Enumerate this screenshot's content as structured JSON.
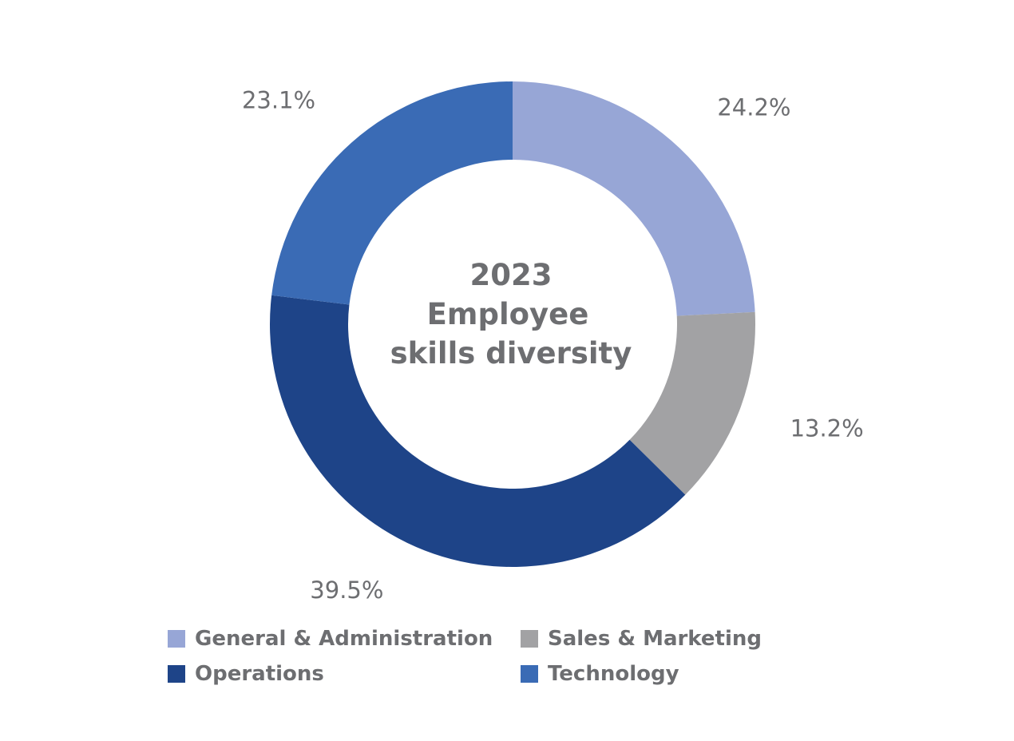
{
  "chart_data": {
    "type": "pie",
    "variant": "donut",
    "center_title": [
      "2023",
      "Employee",
      "skills diversity"
    ],
    "categories": [
      "General & Administration",
      "Sales & Marketing",
      "Operations",
      "Technology"
    ],
    "values": [
      24.2,
      13.2,
      39.5,
      23.1
    ],
    "labels": [
      "24.2%",
      "13.2%",
      "39.5%",
      "23.1%"
    ],
    "colors": [
      "#97a6d6",
      "#a2a2a4",
      "#1e4488",
      "#3a6bb5"
    ],
    "legend_placement": "bottom"
  }
}
